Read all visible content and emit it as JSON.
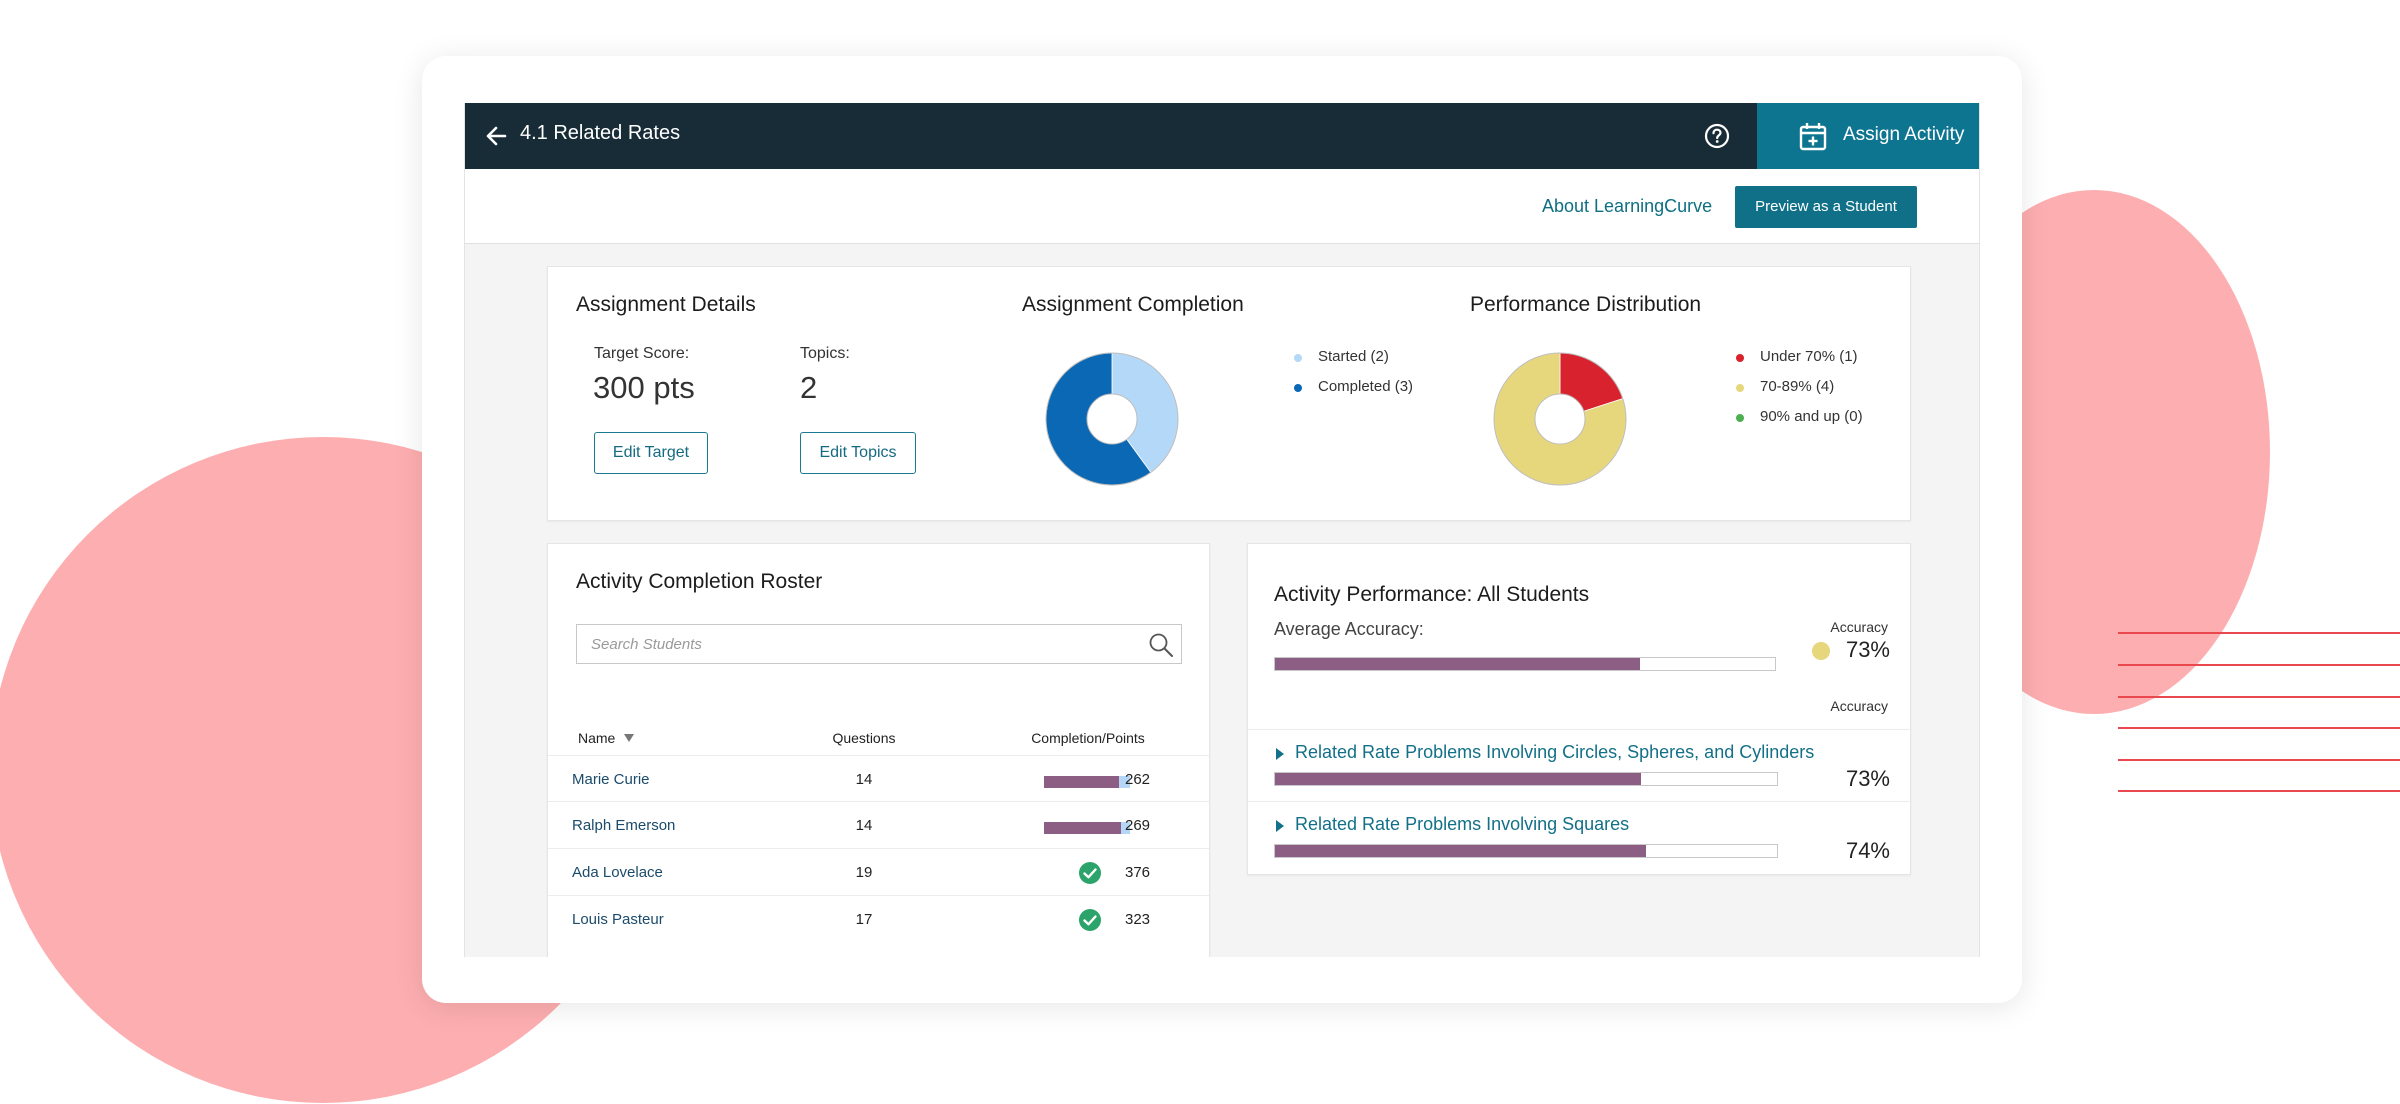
{
  "header": {
    "title": "4.1 Related Rates",
    "assign_label": "Assign Activity"
  },
  "subbar": {
    "about_link": "About LearningCurve",
    "preview_label": "Preview as a Student"
  },
  "assignment_details": {
    "title": "Assignment Details",
    "target_label": "Target Score:",
    "target_value": "300 pts",
    "topics_label": "Topics:",
    "topics_value": "2",
    "edit_target": "Edit Target",
    "edit_topics": "Edit Topics"
  },
  "assignment_completion": {
    "title": "Assignment Completion",
    "legend": [
      {
        "label": "Started (2)",
        "color": "#b3d8f8"
      },
      {
        "label": "Completed (3)",
        "color": "#0b68b4"
      }
    ]
  },
  "performance_distribution": {
    "title": "Performance Distribution",
    "legend": [
      {
        "label": "Under 70% (1)",
        "color": "#d8232e"
      },
      {
        "label": "70-89% (4)",
        "color": "#e6d67c"
      },
      {
        "label": "90% and up (0)",
        "color": "#4caf50"
      }
    ]
  },
  "chart_data": [
    {
      "type": "pie",
      "title": "Assignment Completion",
      "categories": [
        "Started (2)",
        "Completed (3)"
      ],
      "values": [
        2,
        3
      ],
      "colors": [
        "#b3d8f8",
        "#0b68b4"
      ]
    },
    {
      "type": "pie",
      "title": "Performance Distribution",
      "categories": [
        "Under 70% (1)",
        "70-89% (4)",
        "90% and up (0)"
      ],
      "values": [
        1,
        4,
        0
      ],
      "colors": [
        "#d8232e",
        "#e6d67c",
        "#4caf50"
      ]
    }
  ],
  "roster": {
    "title": "Activity Completion Roster",
    "search_placeholder": "Search Students",
    "columns": {
      "name": "Name",
      "questions": "Questions",
      "completion": "Completion/Points"
    },
    "rows": [
      {
        "name": "Marie Curie",
        "questions": "14",
        "points": "262",
        "completion": 0.87,
        "complete": false
      },
      {
        "name": "Ralph Emerson",
        "questions": "14",
        "points": "269",
        "completion": 0.9,
        "complete": false
      },
      {
        "name": "Ada Lovelace",
        "questions": "19",
        "points": "376",
        "completion": 1,
        "complete": true
      },
      {
        "name": "Louis Pasteur",
        "questions": "17",
        "points": "323",
        "completion": 1,
        "complete": true
      }
    ]
  },
  "performance": {
    "title": "Activity Performance: All Students",
    "avg_label": "Average Accuracy:",
    "accuracy_header": "Accuracy",
    "avg_value": "73%",
    "avg_fraction": 0.73,
    "avg_dot_color": "#e6d67c",
    "topics": [
      {
        "label": "Related Rate Problems Involving Circles, Spheres, and Cylinders",
        "accuracy": "73%",
        "fraction": 0.73
      },
      {
        "label": "Related Rate Problems Involving Squares",
        "accuracy": "74%",
        "fraction": 0.74
      }
    ]
  }
}
